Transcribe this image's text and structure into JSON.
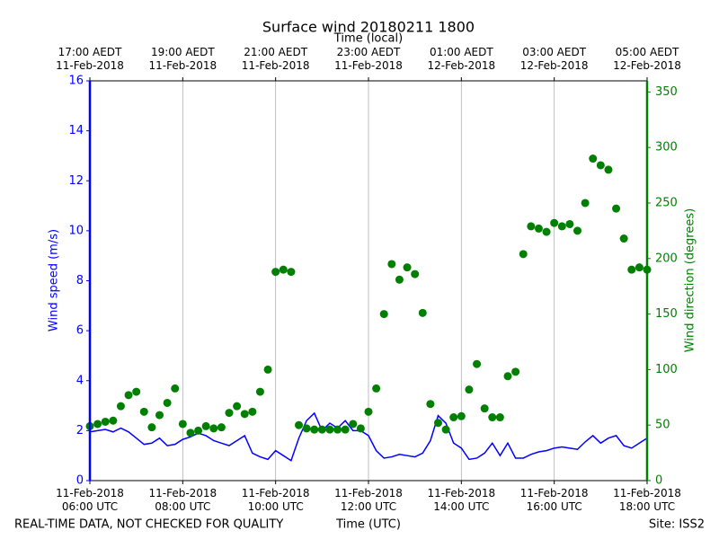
{
  "chart_data": {
    "type": "line",
    "title": "Surface wind 20180211 1800",
    "xlabel": "Time (UTC)",
    "x2label": "Time (local)",
    "ylabel": "Wind speed (m/s)",
    "y2label": "Wind direction (degrees)",
    "footer_left": "REAL-TIME DATA, NOT CHECKED FOR QUALITY",
    "footer_right": "Site: ISS2",
    "grid": "x",
    "xlim": [
      "2018-02-11T06:00",
      "2018-02-11T18:00"
    ],
    "xticks": [
      {
        "value": "2018-02-11T06:00",
        "label": "11-Feb-2018\n06:00 UTC"
      },
      {
        "value": "2018-02-11T08:00",
        "label": "11-Feb-2018\n08:00 UTC"
      },
      {
        "value": "2018-02-11T10:00",
        "label": "11-Feb-2018\n10:00 UTC"
      },
      {
        "value": "2018-02-11T12:00",
        "label": "11-Feb-2018\n12:00 UTC"
      },
      {
        "value": "2018-02-11T14:00",
        "label": "11-Feb-2018\n14:00 UTC"
      },
      {
        "value": "2018-02-11T16:00",
        "label": "11-Feb-2018\n16:00 UTC"
      },
      {
        "value": "2018-02-11T18:00",
        "label": "11-Feb-2018\n18:00 UTC"
      }
    ],
    "x2ticks": [
      {
        "value": "2018-02-11T06:00",
        "label": "17:00 AEDT\n11-Feb-2018"
      },
      {
        "value": "2018-02-11T08:00",
        "label": "19:00 AEDT\n11-Feb-2018"
      },
      {
        "value": "2018-02-11T10:00",
        "label": "21:00 AEDT\n11-Feb-2018"
      },
      {
        "value": "2018-02-11T12:00",
        "label": "23:00 AEDT\n11-Feb-2018"
      },
      {
        "value": "2018-02-11T14:00",
        "label": "01:00 AEDT\n12-Feb-2018"
      },
      {
        "value": "2018-02-11T16:00",
        "label": "03:00 AEDT\n12-Feb-2018"
      },
      {
        "value": "2018-02-11T18:00",
        "label": "05:00 AEDT\n12-Feb-2018"
      }
    ],
    "ylim": [
      0,
      16
    ],
    "yticks": [
      0,
      2,
      4,
      6,
      8,
      10,
      12,
      14,
      16
    ],
    "y2lim": [
      0,
      360
    ],
    "y2ticks": [
      0,
      50,
      100,
      150,
      200,
      250,
      300,
      350
    ],
    "x": [
      "2018-02-11T06:00",
      "2018-02-11T06:10",
      "2018-02-11T06:20",
      "2018-02-11T06:30",
      "2018-02-11T06:40",
      "2018-02-11T06:50",
      "2018-02-11T07:00",
      "2018-02-11T07:10",
      "2018-02-11T07:20",
      "2018-02-11T07:30",
      "2018-02-11T07:40",
      "2018-02-11T07:50",
      "2018-02-11T08:00",
      "2018-02-11T08:10",
      "2018-02-11T08:20",
      "2018-02-11T08:30",
      "2018-02-11T08:40",
      "2018-02-11T08:50",
      "2018-02-11T09:00",
      "2018-02-11T09:10",
      "2018-02-11T09:20",
      "2018-02-11T09:30",
      "2018-02-11T09:40",
      "2018-02-11T09:50",
      "2018-02-11T10:00",
      "2018-02-11T10:10",
      "2018-02-11T10:20",
      "2018-02-11T10:30",
      "2018-02-11T10:40",
      "2018-02-11T10:50",
      "2018-02-11T11:00",
      "2018-02-11T11:10",
      "2018-02-11T11:20",
      "2018-02-11T11:30",
      "2018-02-11T11:40",
      "2018-02-11T11:50",
      "2018-02-11T12:00",
      "2018-02-11T12:10",
      "2018-02-11T12:20",
      "2018-02-11T12:30",
      "2018-02-11T12:40",
      "2018-02-11T12:50",
      "2018-02-11T13:00",
      "2018-02-11T13:10",
      "2018-02-11T13:20",
      "2018-02-11T13:30",
      "2018-02-11T13:40",
      "2018-02-11T13:50",
      "2018-02-11T14:00",
      "2018-02-11T14:10",
      "2018-02-11T14:20",
      "2018-02-11T14:30",
      "2018-02-11T14:40",
      "2018-02-11T14:50",
      "2018-02-11T15:00",
      "2018-02-11T15:10",
      "2018-02-11T15:20",
      "2018-02-11T15:30",
      "2018-02-11T15:40",
      "2018-02-11T15:50",
      "2018-02-11T16:00",
      "2018-02-11T16:10",
      "2018-02-11T16:20",
      "2018-02-11T16:30",
      "2018-02-11T16:40",
      "2018-02-11T16:50",
      "2018-02-11T17:00",
      "2018-02-11T17:10",
      "2018-02-11T17:20",
      "2018-02-11T17:30",
      "2018-02-11T17:40",
      "2018-02-11T17:50",
      "2018-02-11T18:00"
    ],
    "series": [
      {
        "type": "line",
        "color": "#0000ff",
        "values": [
          1.95,
          2.0,
          2.05,
          1.95,
          2.1,
          1.95,
          1.7,
          1.45,
          1.5,
          1.7,
          1.4,
          1.45,
          1.65,
          1.75,
          1.9,
          1.8,
          1.6,
          1.5,
          1.4,
          1.6,
          1.8,
          1.1,
          0.95,
          0.85,
          1.2,
          1.0,
          0.8,
          1.7,
          2.4,
          2.7,
          2.0,
          2.3,
          2.1,
          2.4,
          2.0,
          2.0,
          1.8,
          1.2,
          0.9,
          0.95,
          1.05,
          1.0,
          0.95,
          1.1,
          1.6,
          2.6,
          2.3,
          1.5,
          1.3,
          0.85,
          0.9,
          1.1,
          1.5,
          1.0,
          1.5,
          0.9,
          0.9,
          1.05,
          1.15,
          1.2,
          1.3,
          1.35,
          1.3,
          1.25,
          1.55,
          1.8,
          1.5,
          1.7,
          1.8,
          1.4,
          1.3,
          1.5,
          1.7
        ]
      },
      {
        "type": "scatter",
        "axis": "y2",
        "color": "#008000",
        "values": [
          49,
          51,
          53,
          54,
          67,
          77,
          80,
          62,
          48,
          59,
          70,
          83,
          51,
          43,
          45,
          49,
          47,
          48,
          61,
          67,
          60,
          62,
          80,
          100,
          188,
          190,
          188,
          50,
          47,
          46,
          46,
          46,
          46,
          46,
          51,
          47,
          62,
          83,
          150,
          195,
          181,
          192,
          186,
          151,
          69,
          52,
          46,
          57,
          58,
          82,
          105,
          65,
          57,
          57,
          94,
          98,
          204,
          229,
          227,
          224,
          232,
          229,
          231,
          225,
          250,
          290,
          284,
          280,
          245,
          218,
          190,
          192,
          190
        ]
      }
    ]
  }
}
